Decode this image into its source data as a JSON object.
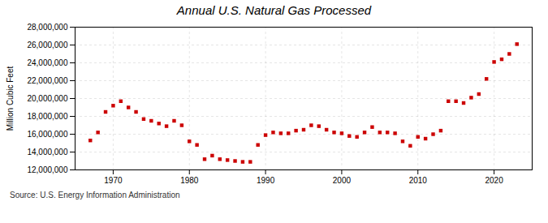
{
  "chart_data": {
    "type": "scatter",
    "title": "Annual U.S. Natural Gas Processed",
    "ylabel": "Million Cubic Feet",
    "annotations": [
      "Source: U.S. Energy Information Administration"
    ],
    "color": "#cc0000",
    "marker": "square",
    "x": [
      1967,
      1968,
      1969,
      1970,
      1971,
      1972,
      1973,
      1974,
      1975,
      1976,
      1977,
      1978,
      1979,
      1980,
      1981,
      1982,
      1983,
      1984,
      1985,
      1986,
      1987,
      1988,
      1989,
      1990,
      1991,
      1992,
      1993,
      1994,
      1995,
      1996,
      1997,
      1998,
      1999,
      2000,
      2001,
      2002,
      2003,
      2004,
      2005,
      2006,
      2007,
      2008,
      2009,
      2010,
      2011,
      2012,
      2013,
      2014,
      2015,
      2016,
      2017,
      2018,
      2019,
      2020,
      2021,
      2022,
      2023
    ],
    "values": [
      15300000,
      16200000,
      18500000,
      19200000,
      19700000,
      19000000,
      18500000,
      17700000,
      17500000,
      17200000,
      16900000,
      17500000,
      17000000,
      15200000,
      14800000,
      13200000,
      13600000,
      13200000,
      13100000,
      13000000,
      12900000,
      12900000,
      14800000,
      15900000,
      16200000,
      16100000,
      16100000,
      16400000,
      16500000,
      17000000,
      16900000,
      16500000,
      16200000,
      16100000,
      15800000,
      15700000,
      16200000,
      16800000,
      16200000,
      16200000,
      16100000,
      15200000,
      14700000,
      15700000,
      15500000,
      16000000,
      16400000,
      19700000,
      19700000,
      19500000,
      20100000,
      20500000,
      22200000,
      24100000,
      24400000,
      25000000,
      26100000
    ],
    "xlim": [
      1965,
      2025
    ],
    "xticks": [
      1970,
      1980,
      1990,
      2000,
      2010,
      2020
    ],
    "ylim": [
      12000000,
      28000000
    ],
    "yticks": [
      {
        "value": 12000000,
        "label": "12,000,000"
      },
      {
        "value": 14000000,
        "label": "14,000,000"
      },
      {
        "value": 16000000,
        "label": "16,000,000"
      },
      {
        "value": 18000000,
        "label": "18,000,000"
      },
      {
        "value": 20000000,
        "label": "20,000,000"
      },
      {
        "value": 22000000,
        "label": "22,000,000"
      },
      {
        "value": 24000000,
        "label": "24,000,000"
      },
      {
        "value": 26000000,
        "label": "26,000,000"
      },
      {
        "value": 28000000,
        "label": "28,000,000"
      }
    ],
    "grid": true
  }
}
